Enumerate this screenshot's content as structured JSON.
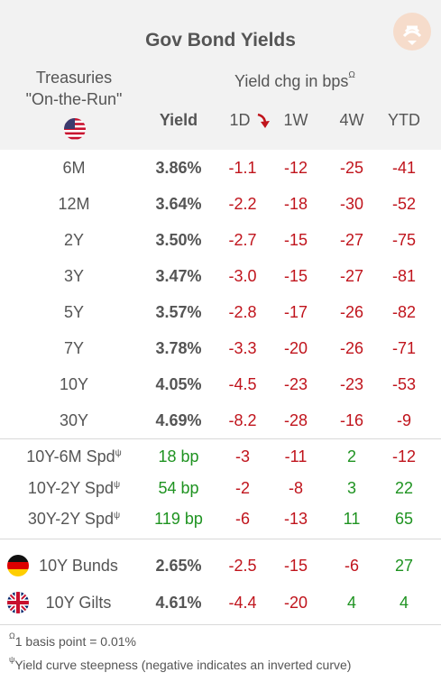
{
  "title": "Gov Bond Yields",
  "treasuries_line1": "Treasuries",
  "treasuries_line2": "\"On-the-Run\"",
  "yield_chg_label": "Yield chg in bps",
  "yield_chg_marker": "Ω",
  "columns": {
    "yield": "Yield",
    "d1": "1D",
    "w1": "1W",
    "w4": "4W",
    "ytd": "YTD"
  },
  "treasury_rows": [
    {
      "label": "6M",
      "yield": "3.86%",
      "d1": "-1.1",
      "w1": "-12",
      "w4": "-25",
      "ytd": "-41"
    },
    {
      "label": "12M",
      "yield": "3.64%",
      "d1": "-2.2",
      "w1": "-18",
      "w4": "-30",
      "ytd": "-52"
    },
    {
      "label": "2Y",
      "yield": "3.50%",
      "d1": "-2.7",
      "w1": "-15",
      "w4": "-27",
      "ytd": "-75"
    },
    {
      "label": "3Y",
      "yield": "3.47%",
      "d1": "-3.0",
      "w1": "-15",
      "w4": "-27",
      "ytd": "-81"
    },
    {
      "label": "5Y",
      "yield": "3.57%",
      "d1": "-2.8",
      "w1": "-17",
      "w4": "-26",
      "ytd": "-82"
    },
    {
      "label": "7Y",
      "yield": "3.78%",
      "d1": "-3.3",
      "w1": "-20",
      "w4": "-26",
      "ytd": "-71"
    },
    {
      "label": "10Y",
      "yield": "4.05%",
      "d1": "-4.5",
      "w1": "-23",
      "w4": "-23",
      "ytd": "-53"
    },
    {
      "label": "30Y",
      "yield": "4.69%",
      "d1": "-8.2",
      "w1": "-28",
      "w4": "-16",
      "ytd": "-9"
    }
  ],
  "spread_rows": [
    {
      "label": "10Y-6M Spd",
      "marker": "ψ",
      "yield": "18 bp",
      "d1": "-3",
      "w1": "-11",
      "w4": "2",
      "ytd": "-12"
    },
    {
      "label": "10Y-2Y Spd",
      "marker": "ψ",
      "yield": "54 bp",
      "d1": "-2",
      "w1": "-8",
      "w4": "3",
      "ytd": "22"
    },
    {
      "label": "30Y-2Y Spd",
      "marker": "ψ",
      "yield": "119 bp",
      "d1": "-6",
      "w1": "-13",
      "w4": "11",
      "ytd": "65"
    }
  ],
  "foreign_rows": [
    {
      "label": "10Y Bunds",
      "yield": "2.65%",
      "d1": "-2.5",
      "w1": "-15",
      "w4": "-6",
      "ytd": "27"
    },
    {
      "label": "10Y Gilts",
      "yield": "4.61%",
      "d1": "-4.4",
      "w1": "-20",
      "w4": "4",
      "ytd": "4"
    }
  ],
  "footnote1_marker": "Ω",
  "footnote1_text": "1 basis point = 0.01%",
  "footnote2_marker": "ψ",
  "footnote2_text": "Yield curve steepness (negative indicates an inverted curve)",
  "colors": {
    "negative": "#c0141c",
    "positive": "#1f9321",
    "header_bg": "#f2f2f2"
  },
  "icons": [
    "logo-icon",
    "us-flag-icon",
    "down-arrow-icon",
    "germany-flag-icon",
    "uk-flag-icon"
  ]
}
